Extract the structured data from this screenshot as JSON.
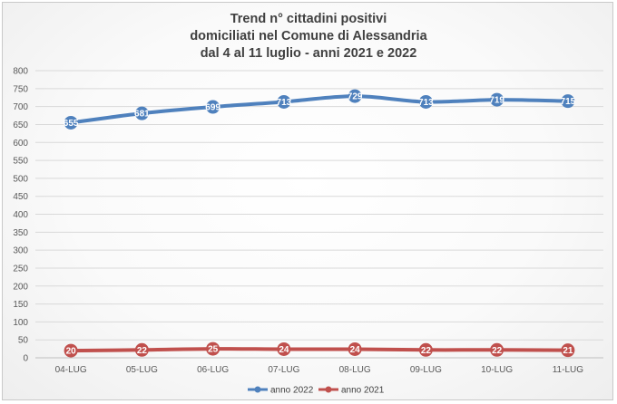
{
  "chart_data": {
    "type": "line",
    "title": [
      "Trend n° cittadini positivi",
      "domiciliati nel Comune di Alessandria",
      "dal 4 al 11 luglio - anni 2021 e 2022"
    ],
    "categories": [
      "04-LUG",
      "05-LUG",
      "06-LUG",
      "07-LUG",
      "08-LUG",
      "09-LUG",
      "10-LUG",
      "11-LUG"
    ],
    "ylim": [
      0,
      800
    ],
    "yticks": [
      0,
      50,
      100,
      150,
      200,
      250,
      300,
      350,
      400,
      450,
      500,
      550,
      600,
      650,
      700,
      750,
      800
    ],
    "grid": true,
    "legend_position": "bottom",
    "series": [
      {
        "name": "anno 2022",
        "color": "#4f81bd",
        "values": [
          655,
          681,
          699,
          713,
          729,
          713,
          719,
          715
        ],
        "labels": [
          "655",
          "681",
          "699",
          "713",
          "729",
          "713",
          "719",
          "715"
        ]
      },
      {
        "name": "anno 2021",
        "color": "#c0504d",
        "values": [
          20,
          22,
          25,
          24,
          24,
          22,
          22,
          21
        ],
        "labels": [
          "20",
          "22",
          "25",
          "24",
          "24",
          "22",
          "22",
          "21"
        ]
      }
    ]
  }
}
